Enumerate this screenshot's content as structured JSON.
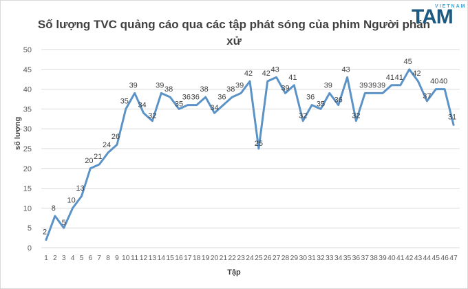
{
  "logo": {
    "top_text": "VIETNAM",
    "main_text": "TAM"
  },
  "chart_data": {
    "type": "line",
    "title": "Số lượng TVC quảng cáo qua các tập phát sóng của phim Người phán xử",
    "title_line1": "Số lượng TVC quảng cáo qua các tập phát sóng của phim Người phán",
    "title_line2": "xử",
    "xlabel": "Tập",
    "ylabel": "số lượng",
    "ylim": [
      0,
      50
    ],
    "yticks": [
      0,
      5,
      10,
      15,
      20,
      25,
      30,
      35,
      40,
      45,
      50
    ],
    "grid": true,
    "legend": "none",
    "line_color": "#5b93c7",
    "categories": [
      1,
      2,
      3,
      4,
      5,
      6,
      7,
      8,
      9,
      10,
      11,
      12,
      13,
      14,
      15,
      16,
      17,
      18,
      19,
      20,
      21,
      22,
      23,
      24,
      25,
      26,
      27,
      28,
      29,
      30,
      31,
      32,
      33,
      34,
      35,
      36,
      37,
      38,
      39,
      40,
      41,
      42,
      43,
      44,
      45,
      46,
      47
    ],
    "series": [
      {
        "name": "Số lượng TVC",
        "values": [
          2,
          8,
          5,
          10,
          13,
          20,
          21,
          24,
          26,
          35,
          39,
          34,
          32,
          39,
          38,
          35,
          36,
          36,
          38,
          34,
          36,
          38,
          39,
          42,
          25,
          42,
          43,
          39,
          41,
          32,
          36,
          35,
          39,
          36,
          43,
          32,
          39,
          39,
          39,
          41,
          41,
          45,
          42,
          37,
          40,
          40,
          31
        ]
      }
    ]
  }
}
